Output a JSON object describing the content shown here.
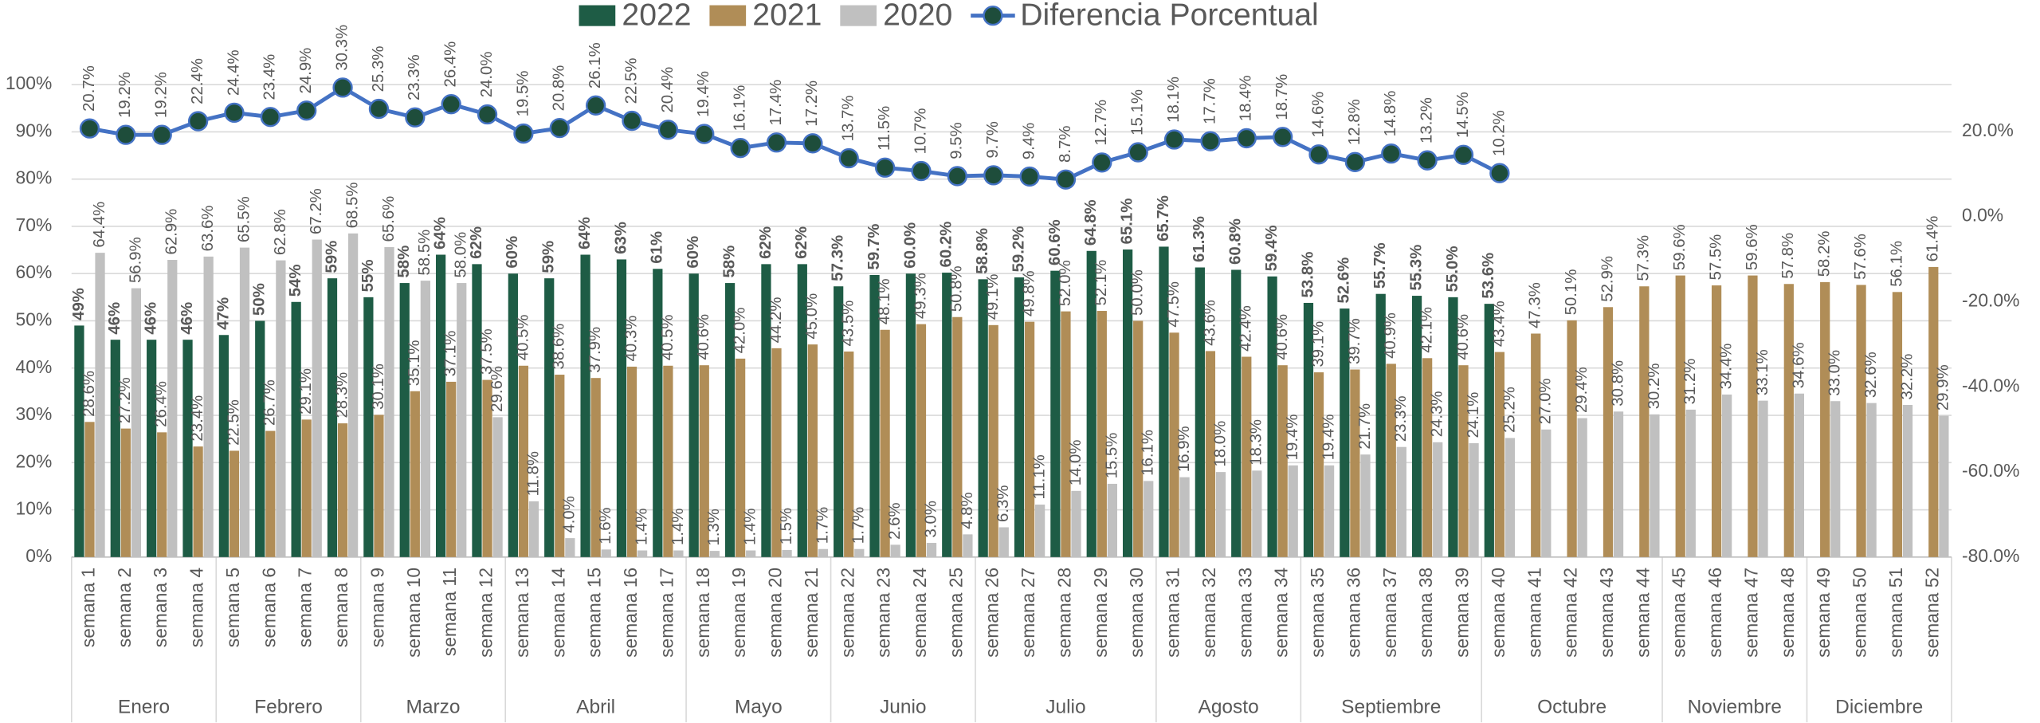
{
  "chart_data": {
    "type": "bar",
    "categories": [
      "semana 1",
      "semana 2",
      "semana 3",
      "semana 4",
      "semana 5",
      "semana 6",
      "semana 7",
      "semana 8",
      "semana 9",
      "semana 10",
      "semana 11",
      "semana 12",
      "semana 13",
      "semana 14",
      "semana 15",
      "semana 16",
      "semana 17",
      "semana 18",
      "semana 19",
      "semana 20",
      "semana 21",
      "semana 22",
      "semana 23",
      "semana 24",
      "semana 25",
      "semana 26",
      "semana 27",
      "semana 28",
      "semana 29",
      "semana 30",
      "semana 31",
      "semana 32",
      "semana 33",
      "semana 34",
      "semana 35",
      "semana 36",
      "semana 37",
      "semana 38",
      "semana 39",
      "semana 40",
      "semana 41",
      "semana 42",
      "semana 43",
      "semana 44",
      "semana 45",
      "semana 46",
      "semana 47",
      "semana 48",
      "semana 49",
      "semana 50",
      "semana 51",
      "semana 52"
    ],
    "groups": [
      {
        "name": "Enero",
        "span": 4
      },
      {
        "name": "Febrero",
        "span": 4
      },
      {
        "name": "Marzo",
        "span": 4
      },
      {
        "name": "Abril",
        "span": 5
      },
      {
        "name": "Mayo",
        "span": 4
      },
      {
        "name": "Junio",
        "span": 4
      },
      {
        "name": "Julio",
        "span": 5
      },
      {
        "name": "Agosto",
        "span": 4
      },
      {
        "name": "Septiembre",
        "span": 5
      },
      {
        "name": "Octubre",
        "span": 5
      },
      {
        "name": "Noviembre",
        "span": 4
      },
      {
        "name": "Diciembre",
        "span": 4
      }
    ],
    "series": [
      {
        "name": "2022",
        "color": "#1e5c45",
        "values": [
          49,
          46,
          46,
          46,
          47,
          50,
          54,
          59,
          55,
          58,
          64,
          62,
          60,
          59,
          64,
          63,
          61,
          60,
          58,
          62,
          62,
          57.3,
          59.7,
          60.0,
          60.2,
          58.8,
          59.2,
          60.6,
          64.8,
          65.1,
          65.7,
          61.3,
          60.8,
          59.4,
          53.8,
          52.6,
          55.7,
          55.3,
          55.0,
          53.6,
          null,
          null,
          null,
          null,
          null,
          null,
          null,
          null,
          null,
          null,
          null,
          null
        ],
        "value_labels": [
          "49%",
          "46%",
          "46%",
          "46%",
          "47%",
          "50%",
          "54%",
          "59%",
          "55%",
          "58%",
          "64%",
          "62%",
          "60%",
          "59%",
          "64%",
          "63%",
          "61%",
          "60%",
          "58%",
          "62%",
          "62%",
          "57.3%",
          "59.7%",
          "60.0%",
          "60.2%",
          "58.8%",
          "59.2%",
          "60.6%",
          "64.8%",
          "65.1%",
          "65.7%",
          "61.3%",
          "60.8%",
          "59.4%",
          "53.8%",
          "52.6%",
          "55.7%",
          "55.3%",
          "55.0%",
          "53.6%",
          null,
          null,
          null,
          null,
          null,
          null,
          null,
          null,
          null,
          null,
          null,
          null
        ]
      },
      {
        "name": "2021",
        "color": "#b08d57",
        "values": [
          28.6,
          27.2,
          26.4,
          23.4,
          22.5,
          26.7,
          29.1,
          28.3,
          30.1,
          35.1,
          37.1,
          37.5,
          40.5,
          38.6,
          37.9,
          40.3,
          40.5,
          40.6,
          42.0,
          44.2,
          45.0,
          43.5,
          48.1,
          49.3,
          50.8,
          49.1,
          49.8,
          52.0,
          52.1,
          50.0,
          47.5,
          43.6,
          42.4,
          40.6,
          39.1,
          39.7,
          40.9,
          42.1,
          40.6,
          43.4,
          47.3,
          50.1,
          52.9,
          57.3,
          59.6,
          57.5,
          59.6,
          57.8,
          58.2,
          57.6,
          56.1,
          61.4
        ],
        "value_labels": [
          "28.6%",
          "27.2%",
          "26.4%",
          "23.4%",
          "22.5%",
          "26.7%",
          "29.1%",
          "28.3%",
          "30.1%",
          "35.1%",
          "37.1%",
          "37.5%",
          "40.5%",
          "38.6%",
          "37.9%",
          "40.3%",
          "40.5%",
          "40.6%",
          "42.0%",
          "44.2%",
          "45.0%",
          "43.5%",
          "48.1%",
          "49.3%",
          "50.8%",
          "49.1%",
          "49.8%",
          "52.0%",
          "52.1%",
          "50.0%",
          "47.5%",
          "43.6%",
          "42.4%",
          "40.6%",
          "39.1%",
          "39.7%",
          "40.9%",
          "42.1%",
          "40.6%",
          "43.4%",
          "47.3%",
          "50.1%",
          "52.9%",
          "57.3%",
          "59.6%",
          "57.5%",
          "59.6%",
          "57.8%",
          "58.2%",
          "57.6%",
          "56.1%",
          "61.4%"
        ]
      },
      {
        "name": "2020",
        "color": "#c0c0c0",
        "values": [
          64.4,
          56.9,
          62.9,
          63.6,
          65.5,
          62.8,
          67.2,
          68.5,
          65.6,
          58.5,
          58.0,
          29.6,
          11.8,
          4.0,
          1.6,
          1.4,
          1.4,
          1.3,
          1.4,
          1.5,
          1.7,
          1.7,
          2.6,
          3.0,
          4.8,
          6.3,
          11.1,
          14.0,
          15.5,
          16.1,
          16.9,
          18.0,
          18.3,
          19.4,
          19.4,
          21.7,
          23.3,
          24.3,
          24.1,
          25.2,
          27.0,
          29.4,
          30.8,
          30.2,
          31.2,
          34.4,
          33.1,
          34.6,
          33.0,
          32.6,
          32.2,
          29.9
        ],
        "value_labels": [
          "64.4%",
          "56.9%",
          "62.9%",
          "63.6%",
          "65.5%",
          "62.8%",
          "67.2%",
          "68.5%",
          "65.6%",
          "58.5%",
          "58.0%",
          "29.6%",
          "11.8%",
          "4.0%",
          "1.6%",
          "1.4%",
          "1.4%",
          "1.3%",
          "1.4%",
          "1.5%",
          "1.7%",
          "1.7%",
          "2.6%",
          "3.0%",
          "4.8%",
          "6.3%",
          "11.1%",
          "14.0%",
          "15.5%",
          "16.1%",
          "16.9%",
          "18.0%",
          "18.3%",
          "19.4%",
          "19.4%",
          "21.7%",
          "23.3%",
          "24.3%",
          "24.1%",
          "25.2%",
          "27.0%",
          "29.4%",
          "30.8%",
          "30.2%",
          "31.2%",
          "34.4%",
          "33.1%",
          "34.6%",
          "33.0%",
          "32.6%",
          "32.2%",
          "29.9%"
        ]
      },
      {
        "name": "Diferencia Porcentual",
        "color": "#4472c4",
        "type": "line",
        "axis": "y2",
        "values": [
          20.7,
          19.2,
          19.2,
          22.4,
          24.4,
          23.4,
          24.9,
          30.3,
          25.3,
          23.3,
          26.4,
          24.0,
          19.5,
          20.8,
          26.1,
          22.5,
          20.4,
          19.4,
          16.1,
          17.4,
          17.2,
          13.7,
          11.5,
          10.7,
          9.5,
          9.7,
          9.4,
          8.7,
          12.7,
          15.1,
          18.1,
          17.7,
          18.4,
          18.7,
          14.6,
          12.8,
          14.8,
          13.2,
          14.5,
          10.2,
          null,
          null,
          null,
          null,
          null,
          null,
          null,
          null,
          null,
          null,
          null,
          null
        ],
        "value_labels": [
          "20.7%",
          "19.2%",
          "19.2%",
          "22.4%",
          "24.4%",
          "23.4%",
          "24.9%",
          "30.3%",
          "25.3%",
          "23.3%",
          "26.4%",
          "24.0%",
          "19.5%",
          "20.8%",
          "26.1%",
          "22.5%",
          "20.4%",
          "19.4%",
          "16.1%",
          "17.4%",
          "17.2%",
          "13.7%",
          "11.5%",
          "10.7%",
          "9.5%",
          "9.7%",
          "9.4%",
          "8.7%",
          "12.7%",
          "15.1%",
          "18.1%",
          "17.7%",
          "18.4%",
          "18.7%",
          "14.6%",
          "12.8%",
          "14.8%",
          "13.2%",
          "14.5%",
          "10.2%",
          null,
          null,
          null,
          null,
          null,
          null,
          null,
          null,
          null,
          null,
          null,
          null
        ]
      }
    ],
    "ylim": [
      0,
      100
    ],
    "yticks": [
      {
        "value": 0,
        "label": "0%"
      },
      {
        "value": 10,
        "label": "10%"
      },
      {
        "value": 20,
        "label": "20%"
      },
      {
        "value": 30,
        "label": "30%"
      },
      {
        "value": 40,
        "label": "40%"
      },
      {
        "value": 50,
        "label": "50%"
      },
      {
        "value": 60,
        "label": "60%"
      },
      {
        "value": 70,
        "label": "70%"
      },
      {
        "value": 80,
        "label": "80%"
      },
      {
        "value": 90,
        "label": "90%"
      },
      {
        "value": 100,
        "label": "100%"
      }
    ],
    "y2lim": [
      -80,
      31
    ],
    "y2ticks": [
      {
        "value": -80,
        "label": "-80.0%"
      },
      {
        "value": -60,
        "label": "-60.0%"
      },
      {
        "value": -40,
        "label": "-40.0%"
      },
      {
        "value": -20,
        "label": "-20.0%"
      },
      {
        "value": 0,
        "label": "0.0%"
      },
      {
        "value": 20,
        "label": "20.0%"
      }
    ],
    "grid": true,
    "legend": "top"
  }
}
